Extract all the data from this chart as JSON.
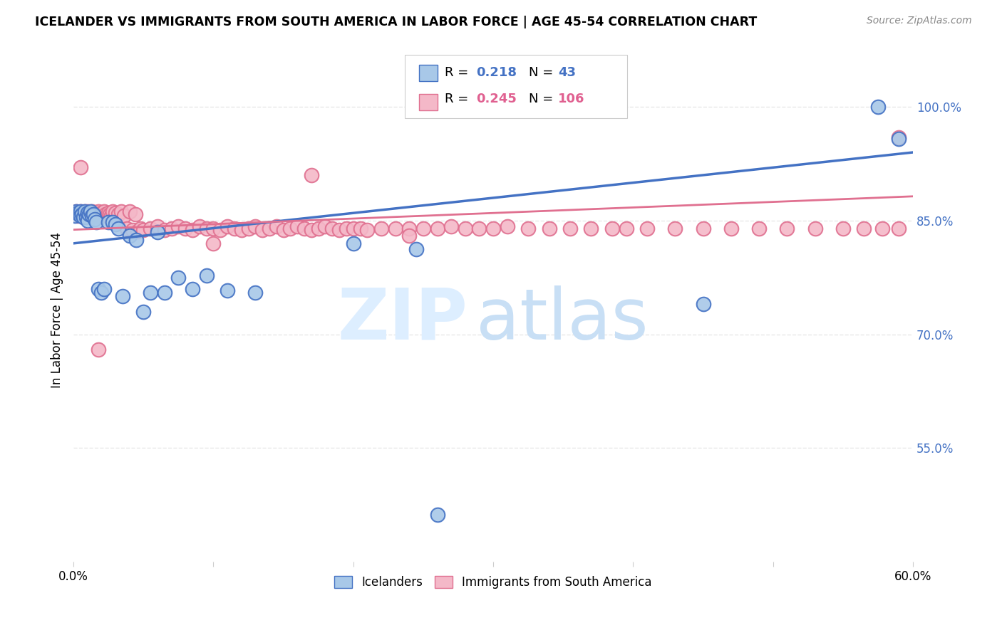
{
  "title": "ICELANDER VS IMMIGRANTS FROM SOUTH AMERICA IN LABOR FORCE | AGE 45-54 CORRELATION CHART",
  "source": "Source: ZipAtlas.com",
  "ylabel_label": "In Labor Force | Age 45-54",
  "x_min": 0.0,
  "x_max": 0.6,
  "y_min": 0.4,
  "y_max": 1.065,
  "x_ticks": [
    0.0,
    0.1,
    0.2,
    0.3,
    0.4,
    0.5,
    0.6
  ],
  "x_tick_labels": [
    "0.0%",
    "",
    "",
    "",
    "",
    "",
    "60.0%"
  ],
  "y_ticks_right": [
    0.55,
    0.7,
    0.85,
    1.0
  ],
  "y_tick_labels_right": [
    "55.0%",
    "70.0%",
    "85.0%",
    "100.0%"
  ],
  "blue_color": "#a8c8e8",
  "pink_color": "#f4b8c8",
  "blue_edge_color": "#4472c4",
  "pink_edge_color": "#e07090",
  "blue_line_color": "#4472c4",
  "pink_line_color": "#e07090",
  "grid_color": "#e8e8e8",
  "watermark_color": "#ddeeff",
  "blue_scatter_x": [
    0.001,
    0.002,
    0.003,
    0.004,
    0.005,
    0.005,
    0.006,
    0.007,
    0.008,
    0.009,
    0.01,
    0.01,
    0.011,
    0.012,
    0.013,
    0.014,
    0.015,
    0.016,
    0.018,
    0.02,
    0.022,
    0.025,
    0.028,
    0.03,
    0.032,
    0.035,
    0.04,
    0.045,
    0.05,
    0.055,
    0.06,
    0.065,
    0.075,
    0.085,
    0.095,
    0.11,
    0.13,
    0.2,
    0.245,
    0.26,
    0.45,
    0.575,
    0.59
  ],
  "blue_scatter_y": [
    0.856,
    0.862,
    0.86,
    0.858,
    0.862,
    0.856,
    0.858,
    0.855,
    0.862,
    0.855,
    0.86,
    0.85,
    0.858,
    0.862,
    0.856,
    0.858,
    0.852,
    0.848,
    0.76,
    0.755,
    0.76,
    0.848,
    0.848,
    0.845,
    0.84,
    0.75,
    0.83,
    0.825,
    0.73,
    0.755,
    0.835,
    0.755,
    0.775,
    0.76,
    0.778,
    0.758,
    0.755,
    0.82,
    0.812,
    0.462,
    0.74,
    1.0,
    0.958
  ],
  "pink_scatter_x": [
    0.001,
    0.002,
    0.003,
    0.004,
    0.005,
    0.005,
    0.006,
    0.007,
    0.008,
    0.009,
    0.01,
    0.01,
    0.011,
    0.012,
    0.013,
    0.014,
    0.015,
    0.016,
    0.017,
    0.018,
    0.019,
    0.02,
    0.021,
    0.022,
    0.023,
    0.024,
    0.025,
    0.026,
    0.027,
    0.028,
    0.03,
    0.032,
    0.034,
    0.036,
    0.038,
    0.04,
    0.042,
    0.044,
    0.046,
    0.048,
    0.05,
    0.055,
    0.06,
    0.065,
    0.07,
    0.075,
    0.08,
    0.085,
    0.09,
    0.095,
    0.1,
    0.105,
    0.11,
    0.115,
    0.12,
    0.125,
    0.13,
    0.135,
    0.14,
    0.145,
    0.15,
    0.155,
    0.16,
    0.165,
    0.17,
    0.175,
    0.18,
    0.185,
    0.19,
    0.195,
    0.2,
    0.205,
    0.21,
    0.22,
    0.23,
    0.24,
    0.25,
    0.26,
    0.27,
    0.28,
    0.29,
    0.3,
    0.31,
    0.325,
    0.34,
    0.355,
    0.37,
    0.385,
    0.395,
    0.41,
    0.43,
    0.45,
    0.47,
    0.49,
    0.51,
    0.53,
    0.55,
    0.565,
    0.578,
    0.59,
    0.005,
    0.018,
    0.1,
    0.17,
    0.24,
    0.59
  ],
  "pink_scatter_y": [
    0.858,
    0.862,
    0.856,
    0.86,
    0.862,
    0.858,
    0.86,
    0.856,
    0.862,
    0.858,
    0.862,
    0.856,
    0.86,
    0.856,
    0.862,
    0.858,
    0.86,
    0.856,
    0.858,
    0.862,
    0.856,
    0.86,
    0.858,
    0.862,
    0.858,
    0.856,
    0.86,
    0.858,
    0.856,
    0.862,
    0.86,
    0.858,
    0.862,
    0.856,
    0.84,
    0.862,
    0.838,
    0.858,
    0.836,
    0.84,
    0.838,
    0.84,
    0.842,
    0.838,
    0.84,
    0.842,
    0.84,
    0.838,
    0.842,
    0.84,
    0.84,
    0.838,
    0.842,
    0.84,
    0.838,
    0.84,
    0.842,
    0.838,
    0.84,
    0.842,
    0.838,
    0.84,
    0.842,
    0.84,
    0.838,
    0.84,
    0.842,
    0.84,
    0.838,
    0.84,
    0.84,
    0.84,
    0.838,
    0.84,
    0.84,
    0.84,
    0.84,
    0.84,
    0.842,
    0.84,
    0.84,
    0.84,
    0.842,
    0.84,
    0.84,
    0.84,
    0.84,
    0.84,
    0.84,
    0.84,
    0.84,
    0.84,
    0.84,
    0.84,
    0.84,
    0.84,
    0.84,
    0.84,
    0.84,
    0.84,
    0.92,
    0.68,
    0.82,
    0.91,
    0.83,
    0.96
  ],
  "blue_trend_x0": 0.0,
  "blue_trend_x1": 0.6,
  "blue_trend_y0": 0.82,
  "blue_trend_y1": 0.94,
  "pink_trend_x0": 0.0,
  "pink_trend_x1": 0.6,
  "pink_trend_y0": 0.838,
  "pink_trend_y1": 0.882
}
